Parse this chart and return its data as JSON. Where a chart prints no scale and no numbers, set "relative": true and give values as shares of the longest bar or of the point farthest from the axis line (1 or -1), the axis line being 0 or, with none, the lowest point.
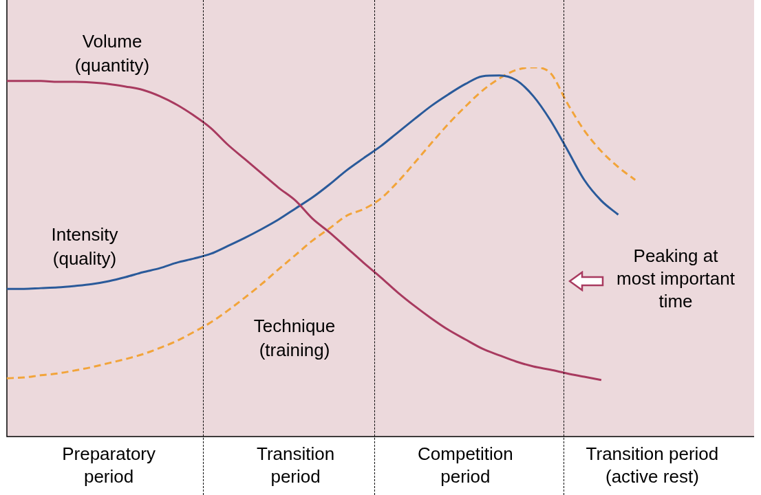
{
  "chart_data": {
    "type": "line",
    "relative": true,
    "categories": [
      null,
      null,
      null,
      null,
      null,
      null,
      "Preparatory\nperiod",
      null,
      null,
      null,
      null,
      null,
      null,
      null,
      null,
      null,
      null,
      "Transition\nperiod",
      null,
      null,
      null,
      null,
      null,
      null,
      null,
      null,
      null,
      "Competition\nperiod",
      null,
      null,
      null,
      null,
      null,
      null,
      null,
      null,
      null,
      null,
      "Transition period\n(active rest)",
      null,
      null,
      null,
      null,
      null,
      null
    ],
    "grid": false,
    "legend": false,
    "marker": "none",
    "series": [
      {
        "name": "Volume\n(quantity)",
        "color": "#a83a5f",
        "line_style": "solid",
        "values": [
          0.963,
          0.963,
          0.963,
          0.961,
          0.961,
          0.959,
          0.955,
          0.948,
          0.939,
          0.922,
          0.899,
          0.87,
          0.836,
          0.791,
          0.752,
          0.713,
          0.674,
          0.639,
          0.59,
          0.553,
          0.512,
          0.471,
          0.432,
          0.391,
          0.354,
          0.32,
          0.289,
          0.263,
          0.238,
          0.22,
          0.203,
          0.19,
          0.181,
          0.171,
          0.162,
          0.153,
          null,
          null,
          null,
          null,
          null,
          null,
          null,
          null,
          null
        ]
      },
      {
        "name": "Intensity\n(quality)",
        "color": "#2a5a9a",
        "line_style": "solid",
        "values": [
          0.4,
          0.4,
          0.402,
          0.404,
          0.408,
          0.413,
          0.421,
          0.432,
          0.445,
          0.456,
          0.471,
          0.482,
          0.495,
          0.516,
          0.538,
          0.562,
          0.588,
          0.618,
          0.648,
          0.683,
          0.721,
          0.754,
          0.786,
          0.823,
          0.86,
          0.896,
          0.927,
          0.955,
          0.976,
          0.978,
          0.965,
          0.922,
          0.857,
          0.777,
          0.695,
          0.639,
          0.601,
          null,
          null,
          null,
          null,
          null,
          null,
          null,
          null
        ]
      },
      {
        "name": "Technique\n(training)",
        "color": "#f2a43a",
        "line_style": "dashed",
        "values": [
          0.158,
          0.16,
          0.166,
          0.171,
          0.179,
          0.188,
          0.199,
          0.21,
          0.223,
          0.24,
          0.259,
          0.283,
          0.309,
          0.341,
          0.376,
          0.413,
          0.453,
          0.492,
          0.531,
          0.564,
          0.598,
          0.616,
          0.644,
          0.689,
          0.741,
          0.795,
          0.847,
          0.894,
          0.937,
          0.97,
          0.993,
          1,
          0.985,
          0.903,
          0.829,
          0.773,
          0.73,
          0.695,
          null,
          null,
          null,
          null,
          null,
          null,
          null
        ]
      }
    ],
    "annotations": [
      "Peaking at most important time"
    ]
  }
}
